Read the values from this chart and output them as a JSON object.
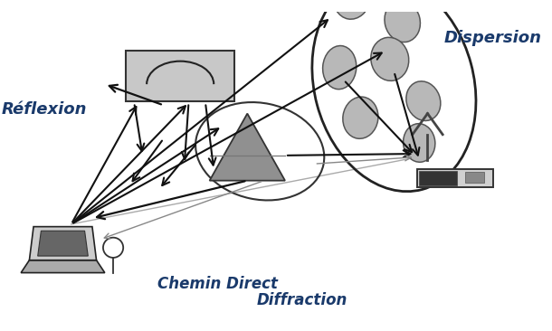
{
  "background_color": "#ffffff",
  "text_color_blue": "#1a3a6b",
  "labels": {
    "dispersion": "Dispersion",
    "reflexion": "Réflexion",
    "chemin_direct": "Chemin Direct",
    "diffraction": "Diffraction"
  },
  "arrow_color": "#111111",
  "gray_arrow_color": "#888888",
  "building_color": "#c8c8c8",
  "scatter_color": "#b0b0b0",
  "prism_color": "#909090",
  "cloud_outline_color": "#222222"
}
